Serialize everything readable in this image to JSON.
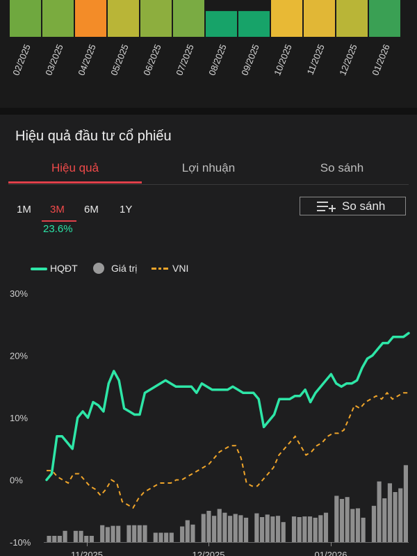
{
  "heatmap": {
    "months": [
      "02/2025",
      "03/2025",
      "04/2025",
      "05/2025",
      "06/2025",
      "07/2025",
      "08/2025",
      "09/2025",
      "10/2025",
      "11/2025",
      "12/2025",
      "01/2026"
    ],
    "colors": [
      "#6fa83f",
      "#7aab3f",
      "#f38c28",
      "#b9b537",
      "#8dae3e",
      "#7aab43",
      "#17a369",
      "#17a369",
      "#e8b935",
      "#e1b736",
      "#b9b537",
      "#3aa054"
    ],
    "levels": [
      1,
      1,
      1,
      1,
      1,
      1,
      0.7,
      0.7,
      1,
      1,
      1,
      1
    ]
  },
  "section": {
    "title": "Hiệu quả đầu tư cổ phiếu",
    "tabs": [
      {
        "label": "Hiệu quả",
        "active": true
      },
      {
        "label": "Lợi nhuận",
        "active": false
      },
      {
        "label": "So sánh",
        "active": false
      }
    ],
    "periods": [
      {
        "label": "1M",
        "active": false
      },
      {
        "label": "3M",
        "active": true
      },
      {
        "label": "6M",
        "active": false
      },
      {
        "label": "1Y",
        "active": false
      }
    ],
    "selected_return": "23.6%",
    "compare_button": "So sánh",
    "icons": {
      "compare": "list-plus-icon",
      "value_legend": "circle-icon"
    }
  },
  "chart_data": {
    "type": "line",
    "legend": [
      "HQĐT",
      "Giá trị",
      "VNI"
    ],
    "colors": {
      "HQĐT": "#2ee6a7",
      "Giá trị": "#9a9a9a",
      "VNI": "#f0a52a"
    },
    "y_ticks": [
      "30%",
      "20%",
      "10%",
      "0%",
      "-10%"
    ],
    "ylim": [
      -10,
      30
    ],
    "x_labels": [
      "11/2025",
      "12/2025",
      "01/2026"
    ],
    "hqdt": [
      0,
      1,
      7,
      7,
      6,
      5,
      10,
      11,
      10,
      12.5,
      12,
      11,
      15.5,
      17.5,
      16,
      11.5,
      11,
      10.5,
      10.5,
      14,
      14.5,
      15,
      15.5,
      16,
      15.5,
      15,
      15,
      15,
      15,
      14,
      15.5,
      15,
      14.5,
      14.5,
      14.5,
      14.5,
      15,
      14.5,
      14,
      14,
      14,
      13,
      8.5,
      9.5,
      10.5,
      13,
      13,
      13,
      13.5,
      13.5,
      14.5,
      12.5,
      14,
      15,
      16,
      17,
      15.5,
      15,
      15.5,
      15.5,
      16,
      18,
      19.5,
      20,
      21,
      22,
      22,
      23,
      23,
      23,
      23.6
    ],
    "vni": [
      1.5,
      1.5,
      0.5,
      0,
      -0.5,
      1,
      1,
      0,
      -1,
      -1.5,
      -2.5,
      -1.5,
      0,
      -0.5,
      -3.5,
      -4,
      -4.5,
      -3,
      -2,
      -1.5,
      -1,
      -0.5,
      -0.5,
      -0.5,
      0,
      0,
      0.5,
      1,
      1.5,
      2,
      2.5,
      3.5,
      4.5,
      5,
      5.5,
      5.5,
      3.5,
      -0.5,
      -1,
      -1,
      0,
      1,
      2,
      4,
      5,
      6,
      7,
      5.5,
      4,
      4.5,
      5.5,
      6,
      7,
      7.5,
      7.5,
      8,
      10,
      12,
      11.5,
      12.5,
      13,
      13.5,
      13,
      14,
      13,
      13.5,
      14,
      14
    ],
    "values": [
      1,
      1,
      1,
      1.8,
      0,
      1.8,
      1.8,
      1,
      1,
      0,
      2.7,
      2.4,
      2.6,
      2.6,
      0,
      2.7,
      2.7,
      2.7,
      2.7,
      0,
      1.5,
      1.5,
      1.5,
      1.5,
      0,
      2.5,
      3.5,
      2.8,
      0,
      4.5,
      5,
      4.2,
      5.3,
      4.7,
      4.2,
      4.5,
      4.3,
      3.9,
      0,
      4.6,
      4,
      4.4,
      4.1,
      4.2,
      3.2,
      0,
      4.1,
      4,
      4.1,
      4.1,
      3.9,
      4.3,
      4.7,
      0,
      7.4,
      6.9,
      7.2,
      5.3,
      5.4,
      3.9,
      0,
      5.8,
      9.7,
      7,
      9.4,
      8,
      8.6,
      12.3
    ]
  }
}
